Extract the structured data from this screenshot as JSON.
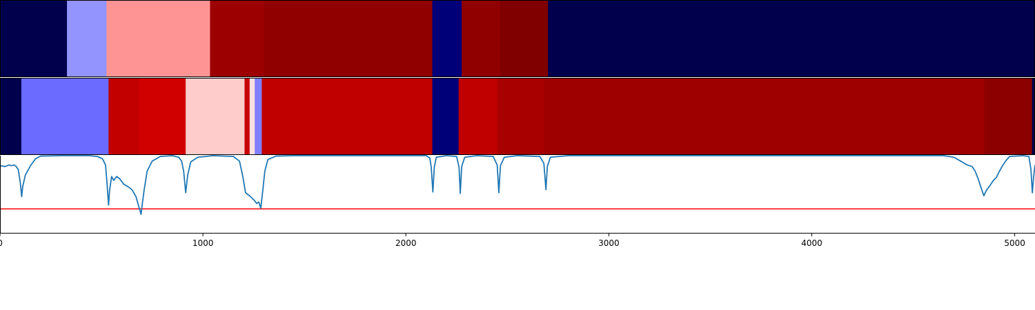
{
  "chart_data": {
    "type": "heatmap",
    "xlim": [
      0,
      5100
    ],
    "x_ticks": [
      "0",
      "1000",
      "2000",
      "3000",
      "4000",
      "5000"
    ],
    "x_tick_values": [
      0,
      1000,
      2000,
      3000,
      4000,
      5000
    ],
    "colormap": "seismic",
    "tracks": [
      {
        "segments": [
          {
            "start": 0,
            "end": 330,
            "color": "#00004c"
          },
          {
            "start": 330,
            "end": 525,
            "color": "#9494ff"
          },
          {
            "start": 525,
            "end": 1035,
            "color": "#ff9494"
          },
          {
            "start": 1035,
            "end": 1300,
            "color": "#9c0000"
          },
          {
            "start": 1300,
            "end": 2130,
            "color": "#900000"
          },
          {
            "start": 2130,
            "end": 2275,
            "color": "#000078"
          },
          {
            "start": 2275,
            "end": 2465,
            "color": "#900000"
          },
          {
            "start": 2465,
            "end": 2700,
            "color": "#800000"
          },
          {
            "start": 2700,
            "end": 5100,
            "color": "#00004c"
          }
        ]
      },
      {
        "segments": [
          {
            "start": 0,
            "end": 105,
            "color": "#00004c"
          },
          {
            "start": 105,
            "end": 535,
            "color": "#6b6bff"
          },
          {
            "start": 535,
            "end": 685,
            "color": "#c20000"
          },
          {
            "start": 685,
            "end": 915,
            "color": "#d10000"
          },
          {
            "start": 915,
            "end": 1205,
            "color": "#ffcccc"
          },
          {
            "start": 1205,
            "end": 1230,
            "color": "#c80000"
          },
          {
            "start": 1230,
            "end": 1255,
            "color": "#ffe0e0"
          },
          {
            "start": 1255,
            "end": 1290,
            "color": "#8080ff"
          },
          {
            "start": 1290,
            "end": 2130,
            "color": "#c00000"
          },
          {
            "start": 2130,
            "end": 2260,
            "color": "#000078"
          },
          {
            "start": 2260,
            "end": 2450,
            "color": "#c00000"
          },
          {
            "start": 2450,
            "end": 2680,
            "color": "#a80000"
          },
          {
            "start": 2680,
            "end": 4850,
            "color": "#9e0000"
          },
          {
            "start": 4850,
            "end": 5085,
            "color": "#8c0000"
          },
          {
            "start": 5085,
            "end": 5100,
            "color": "#00004c"
          }
        ]
      }
    ],
    "line": {
      "color": "#1f77b4",
      "ylim": [
        0,
        1
      ],
      "points": [
        [
          0,
          0.87
        ],
        [
          25,
          0.86
        ],
        [
          45,
          0.88
        ],
        [
          55,
          0.87
        ],
        [
          70,
          0.88
        ],
        [
          80,
          0.86
        ],
        [
          90,
          0.82
        ],
        [
          100,
          0.65
        ],
        [
          107,
          0.47
        ],
        [
          112,
          0.6
        ],
        [
          125,
          0.75
        ],
        [
          150,
          0.87
        ],
        [
          175,
          0.96
        ],
        [
          200,
          0.995
        ],
        [
          300,
          1.0
        ],
        [
          440,
          1.0
        ],
        [
          480,
          0.99
        ],
        [
          505,
          0.96
        ],
        [
          520,
          0.88
        ],
        [
          528,
          0.62
        ],
        [
          535,
          0.36
        ],
        [
          540,
          0.55
        ],
        [
          550,
          0.73
        ],
        [
          560,
          0.68
        ],
        [
          575,
          0.73
        ],
        [
          590,
          0.7
        ],
        [
          610,
          0.63
        ],
        [
          630,
          0.6
        ],
        [
          650,
          0.56
        ],
        [
          670,
          0.47
        ],
        [
          685,
          0.33
        ],
        [
          695,
          0.24
        ],
        [
          700,
          0.35
        ],
        [
          710,
          0.55
        ],
        [
          725,
          0.8
        ],
        [
          750,
          0.93
        ],
        [
          790,
          0.99
        ],
        [
          850,
          1.0
        ],
        [
          880,
          0.98
        ],
        [
          895,
          0.93
        ],
        [
          905,
          0.8
        ],
        [
          915,
          0.52
        ],
        [
          925,
          0.75
        ],
        [
          940,
          0.92
        ],
        [
          975,
          0.98
        ],
        [
          1050,
          1.0
        ],
        [
          1150,
          0.99
        ],
        [
          1180,
          0.93
        ],
        [
          1195,
          0.75
        ],
        [
          1210,
          0.52
        ],
        [
          1230,
          0.48
        ],
        [
          1250,
          0.43
        ],
        [
          1265,
          0.38
        ],
        [
          1275,
          0.4
        ],
        [
          1285,
          0.32
        ],
        [
          1295,
          0.55
        ],
        [
          1305,
          0.8
        ],
        [
          1320,
          0.95
        ],
        [
          1360,
          0.995
        ],
        [
          1450,
          1.0
        ],
        [
          2100,
          1.0
        ],
        [
          2118,
          0.97
        ],
        [
          2125,
          0.85
        ],
        [
          2133,
          0.53
        ],
        [
          2140,
          0.85
        ],
        [
          2150,
          0.98
        ],
        [
          2200,
          1.0
        ],
        [
          2250,
          0.99
        ],
        [
          2262,
          0.85
        ],
        [
          2268,
          0.51
        ],
        [
          2275,
          0.86
        ],
        [
          2290,
          0.98
        ],
        [
          2350,
          1.0
        ],
        [
          2430,
          0.99
        ],
        [
          2450,
          0.88
        ],
        [
          2458,
          0.52
        ],
        [
          2466,
          0.87
        ],
        [
          2485,
          0.98
        ],
        [
          2550,
          1.0
        ],
        [
          2660,
          0.99
        ],
        [
          2680,
          0.9
        ],
        [
          2690,
          0.56
        ],
        [
          2697,
          0.86
        ],
        [
          2712,
          0.98
        ],
        [
          2800,
          1.0
        ],
        [
          4650,
          1.0
        ],
        [
          4700,
          0.98
        ],
        [
          4740,
          0.92
        ],
        [
          4765,
          0.88
        ],
        [
          4790,
          0.86
        ],
        [
          4805,
          0.8
        ],
        [
          4820,
          0.7
        ],
        [
          4835,
          0.58
        ],
        [
          4848,
          0.48
        ],
        [
          4860,
          0.55
        ],
        [
          4880,
          0.62
        ],
        [
          4895,
          0.68
        ],
        [
          4910,
          0.72
        ],
        [
          4925,
          0.8
        ],
        [
          4940,
          0.87
        ],
        [
          4955,
          0.93
        ],
        [
          4975,
          0.99
        ],
        [
          5040,
          1.0
        ],
        [
          5070,
          0.99
        ],
        [
          5080,
          0.82
        ],
        [
          5087,
          0.52
        ],
        [
          5093,
          0.72
        ],
        [
          5100,
          0.88
        ]
      ]
    },
    "threshold": {
      "value": 0.31,
      "color": "#ff0000"
    }
  }
}
